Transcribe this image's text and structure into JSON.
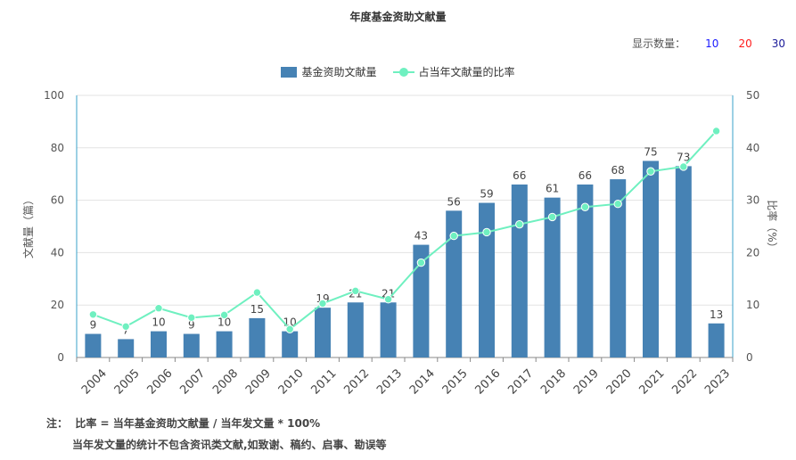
{
  "title": "年度基金资助文献量",
  "display_count": {
    "label": "显示数量：",
    "options": [
      {
        "label": "10",
        "color": "#1a1aff"
      },
      {
        "label": "20",
        "color": "#ff1a1a"
      },
      {
        "label": "30",
        "color": "#1a1a99"
      }
    ]
  },
  "colors": {
    "bar": "#4682b4",
    "line": "#6ff0c0",
    "axis": "#3aa0c8"
  },
  "legend": {
    "bar_label": "基金资助文献量",
    "line_label": "占当年文献量的比率"
  },
  "notes": {
    "line1": "注：  比率 = 当年基金资助文献量 / 当年发文量 * 100%",
    "line2": "当年发文量的统计不包含资讯类文献,如致谢、稿约、启事、勘误等"
  },
  "chart_data": {
    "type": "bar",
    "title": "年度基金资助文献量",
    "categories": [
      "2004",
      "2005",
      "2006",
      "2007",
      "2008",
      "2009",
      "2010",
      "2011",
      "2012",
      "2013",
      "2014",
      "2015",
      "2016",
      "2017",
      "2018",
      "2019",
      "2020",
      "2021",
      "2022",
      "2023"
    ],
    "series": [
      {
        "name": "基金资助文献量",
        "type": "bar",
        "axis": "left",
        "values": [
          9,
          7,
          10,
          9,
          10,
          15,
          10,
          19,
          21,
          21,
          43,
          56,
          59,
          66,
          61,
          66,
          68,
          75,
          73,
          13
        ]
      },
      {
        "name": "占当年文献量的比率",
        "type": "line",
        "axis": "right",
        "values": [
          8.2,
          5.9,
          9.4,
          7.6,
          8.1,
          12.4,
          5.4,
          10.3,
          12.7,
          11.1,
          18.1,
          23.2,
          23.9,
          25.4,
          26.8,
          28.7,
          29.3,
          35.5,
          36.4,
          43.2
        ]
      }
    ],
    "ylabel_left": "文献量（篇）",
    "ylabel_right": "比率（%）",
    "ylim_left": [
      0,
      100
    ],
    "ylim_right": [
      0,
      50
    ],
    "yticks_left": [
      0,
      20,
      40,
      60,
      80,
      100
    ],
    "yticks_right": [
      0,
      10,
      20,
      30,
      40,
      50
    ],
    "grid": true,
    "legend_position": "top-center"
  }
}
